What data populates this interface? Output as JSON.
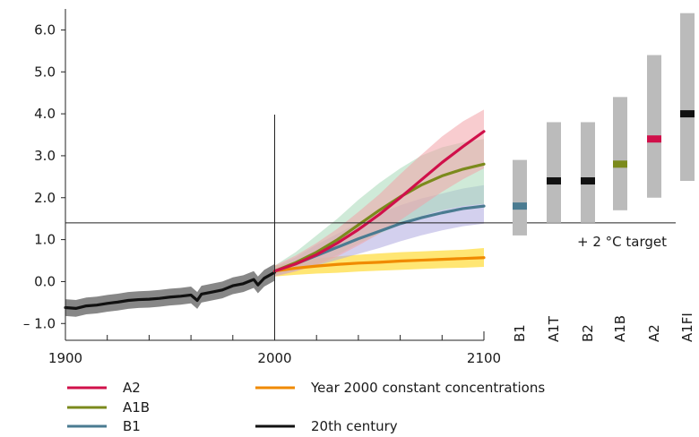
{
  "chart_data": {
    "type": "line",
    "title": "",
    "xlabel": "",
    "ylabel": "",
    "xlim": [
      1900,
      2100
    ],
    "ylim": [
      -1.4,
      6.5
    ],
    "x_ticks": [
      1900,
      2000,
      2100
    ],
    "x_tick_labels": [
      "1900",
      "2000",
      "2100"
    ],
    "y_ticks": [
      -1.0,
      0.0,
      1.0,
      2.0,
      3.0,
      4.0,
      5.0,
      6.0
    ],
    "y_tick_labels": [
      "– 1.0",
      "0.0",
      "1.0",
      "2.0",
      "3.0",
      "4.0",
      "5.0",
      "6.0"
    ],
    "grid": false,
    "target_line": {
      "value": 1.4,
      "label": "+ 2 °C target"
    },
    "divider_year": 2000,
    "series": [
      {
        "name": "20th century",
        "color": "#111111",
        "band_color": "#7a7a7a",
        "x": [
          1900,
          1905,
          1910,
          1915,
          1920,
          1925,
          1930,
          1935,
          1940,
          1945,
          1950,
          1955,
          1960,
          1963,
          1965,
          1970,
          1975,
          1980,
          1985,
          1990,
          1992,
          1995,
          2000
        ],
        "y": [
          -0.62,
          -0.64,
          -0.58,
          -0.56,
          -0.52,
          -0.49,
          -0.45,
          -0.43,
          -0.42,
          -0.4,
          -0.37,
          -0.35,
          -0.32,
          -0.45,
          -0.3,
          -0.25,
          -0.2,
          -0.1,
          -0.05,
          0.05,
          -0.08,
          0.08,
          0.22
        ],
        "lower": [
          -0.82,
          -0.84,
          -0.78,
          -0.76,
          -0.72,
          -0.69,
          -0.65,
          -0.63,
          -0.62,
          -0.6,
          -0.57,
          -0.55,
          -0.52,
          -0.65,
          -0.5,
          -0.45,
          -0.4,
          -0.3,
          -0.25,
          -0.15,
          -0.28,
          -0.12,
          0.02
        ],
        "upper": [
          -0.42,
          -0.44,
          -0.38,
          -0.36,
          -0.32,
          -0.29,
          -0.25,
          -0.23,
          -0.22,
          -0.2,
          -0.17,
          -0.15,
          -0.12,
          -0.25,
          -0.1,
          -0.05,
          0.0,
          0.1,
          0.15,
          0.25,
          0.12,
          0.28,
          0.42
        ]
      },
      {
        "name": "Year 2000 constant concentrations",
        "color": "#f08a00",
        "band_color": "#ffd200",
        "x": [
          2000,
          2010,
          2020,
          2030,
          2040,
          2050,
          2060,
          2070,
          2080,
          2090,
          2100
        ],
        "y": [
          0.25,
          0.32,
          0.37,
          0.41,
          0.44,
          0.46,
          0.49,
          0.51,
          0.53,
          0.55,
          0.57
        ],
        "lower": [
          0.12,
          0.16,
          0.19,
          0.21,
          0.24,
          0.26,
          0.28,
          0.3,
          0.32,
          0.33,
          0.35
        ],
        "upper": [
          0.38,
          0.48,
          0.55,
          0.6,
          0.64,
          0.67,
          0.7,
          0.72,
          0.74,
          0.76,
          0.8
        ]
      },
      {
        "name": "B1",
        "color": "#4a7b91",
        "band_color": "#aeaae0",
        "x": [
          2000,
          2010,
          2020,
          2030,
          2040,
          2050,
          2060,
          2070,
          2080,
          2090,
          2100
        ],
        "y": [
          0.25,
          0.42,
          0.62,
          0.82,
          1.02,
          1.2,
          1.38,
          1.52,
          1.64,
          1.74,
          1.8
        ],
        "lower": [
          0.15,
          0.26,
          0.38,
          0.52,
          0.66,
          0.8,
          0.96,
          1.1,
          1.22,
          1.32,
          1.38
        ],
        "upper": [
          0.35,
          0.58,
          0.88,
          1.14,
          1.4,
          1.62,
          1.82,
          1.98,
          2.1,
          2.22,
          2.3
        ]
      },
      {
        "name": "A1B",
        "color": "#7b8a1c",
        "band_color": "#a8d8b8",
        "x": [
          2000,
          2010,
          2020,
          2030,
          2040,
          2050,
          2060,
          2070,
          2080,
          2090,
          2100
        ],
        "y": [
          0.25,
          0.45,
          0.7,
          1.0,
          1.35,
          1.7,
          2.02,
          2.3,
          2.52,
          2.68,
          2.8
        ],
        "lower": [
          0.12,
          0.25,
          0.42,
          0.64,
          0.9,
          1.14,
          1.36,
          1.56,
          1.7,
          1.8,
          1.85
        ],
        "upper": [
          0.38,
          0.7,
          1.1,
          1.5,
          1.95,
          2.35,
          2.7,
          3.0,
          3.2,
          3.32,
          3.4
        ]
      },
      {
        "name": "A2",
        "color": "#d0104a",
        "band_color": "#f2a3a8",
        "x": [
          2000,
          2010,
          2020,
          2030,
          2040,
          2050,
          2060,
          2070,
          2080,
          2090,
          2100
        ],
        "y": [
          0.25,
          0.42,
          0.64,
          0.92,
          1.24,
          1.6,
          2.0,
          2.42,
          2.84,
          3.22,
          3.58
        ],
        "lower": [
          0.12,
          0.24,
          0.4,
          0.6,
          0.86,
          1.14,
          1.46,
          1.8,
          2.14,
          2.44,
          2.7
        ],
        "upper": [
          0.38,
          0.62,
          0.92,
          1.26,
          1.66,
          2.08,
          2.56,
          3.02,
          3.46,
          3.82,
          4.1
        ]
      }
    ],
    "scenario_ranges": [
      {
        "name": "B1",
        "low": 1.1,
        "high": 2.9,
        "best": 1.8,
        "best_color": "#4a7b91"
      },
      {
        "name": "A1T",
        "low": 1.4,
        "high": 3.8,
        "best": 2.4,
        "best_color": "#111111"
      },
      {
        "name": "B2",
        "low": 1.4,
        "high": 3.8,
        "best": 2.4,
        "best_color": "#111111"
      },
      {
        "name": "A1B",
        "low": 1.7,
        "high": 4.4,
        "best": 2.8,
        "best_color": "#7b8a1c"
      },
      {
        "name": "A2",
        "low": 2.0,
        "high": 5.4,
        "best": 3.4,
        "best_color": "#d0104a"
      },
      {
        "name": "A1FI",
        "low": 2.4,
        "high": 6.4,
        "best": 4.0,
        "best_color": "#111111"
      }
    ],
    "range_bar_color": "#bbbbbb",
    "legend": [
      {
        "name": "A2",
        "color": "#d0104a"
      },
      {
        "name": "A1B",
        "color": "#7b8a1c"
      },
      {
        "name": "B1",
        "color": "#4a7b91"
      },
      {
        "name": "Year 2000 constant concentrations",
        "color": "#f08a00"
      },
      {
        "name": "20th century",
        "color": "#111111"
      }
    ]
  }
}
